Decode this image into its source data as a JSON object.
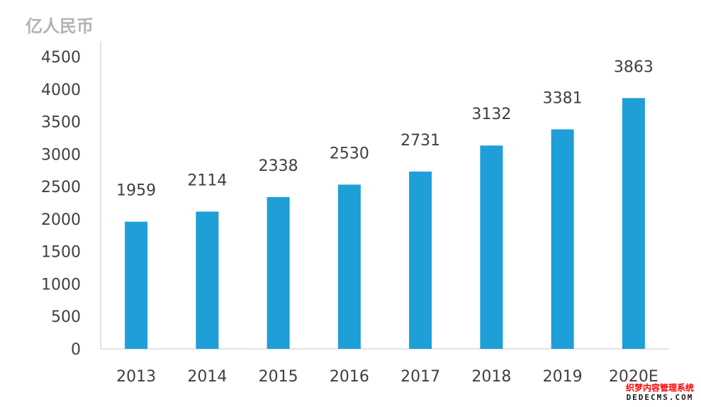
{
  "chart_data": {
    "type": "bar",
    "ylabel": "亿人民币",
    "categories": [
      "2013",
      "2014",
      "2015",
      "2016",
      "2017",
      "2018",
      "2019",
      "2020E"
    ],
    "values": [
      1959,
      2114,
      2338,
      2530,
      2731,
      3132,
      3381,
      3863
    ],
    "ylim": [
      0,
      4500
    ],
    "yticks": [
      0,
      500,
      1000,
      1500,
      2000,
      2500,
      3000,
      3500,
      4000,
      4500
    ],
    "grid": false,
    "bar_color": "#1e9fd7",
    "axis_color": "#d9d9d9",
    "text_color": "#404040"
  },
  "watermark": {
    "line1": "织梦内容管理系统",
    "line2": "DEDECMS.COM"
  }
}
